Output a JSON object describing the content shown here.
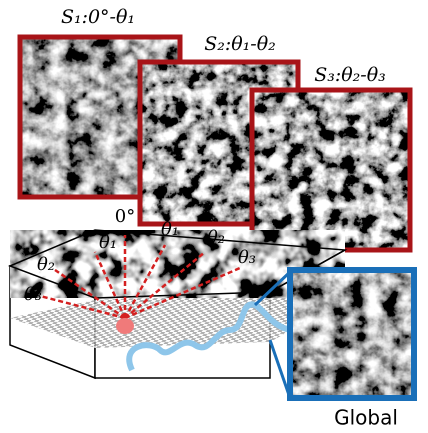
{
  "panels": [
    {
      "label": "S₁:0°-θ₁"
    },
    {
      "label": "S₂:θ₁-θ₂"
    },
    {
      "label": "S₃:θ₂-θ₃"
    }
  ],
  "angles_top": [
    "0°",
    "θ₁",
    "θ₂",
    "θ₃"
  ],
  "angles_left": [
    "θ₁",
    "θ₂",
    "θ₃"
  ],
  "global_label": "Global"
}
